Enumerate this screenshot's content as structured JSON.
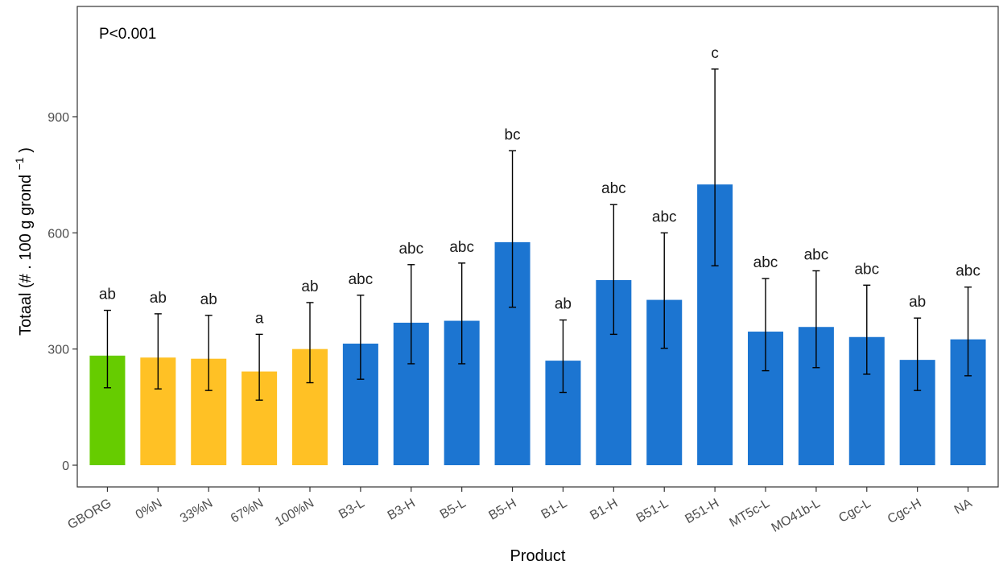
{
  "chart_data": {
    "type": "bar",
    "title": "",
    "xlabel": "Product",
    "ylabel": "Totaal (# . 100 g grond",
    "ylabel_superscript": "−1",
    "ylabel_close": ")",
    "annotation": "P<0.001",
    "ylim": [
      -50,
      1180
    ],
    "yticks": [
      0,
      300,
      600,
      900
    ],
    "grid": false,
    "legend": "none",
    "categories": [
      "GBORG",
      "0%N",
      "33%N",
      "67%N",
      "100%N",
      "B3-L",
      "B3-H",
      "B5-L",
      "B5-H",
      "B1-L",
      "B1-H",
      "B51-L",
      "B51-H",
      "MT5c-L",
      "MO41b-L",
      "Cgc-L",
      "Cgc-H",
      "NA"
    ],
    "values": [
      283,
      278,
      275,
      242,
      300,
      314,
      368,
      373,
      576,
      270,
      478,
      427,
      725,
      345,
      357,
      331,
      272,
      325
    ],
    "error_low": [
      200,
      197,
      193,
      168,
      213,
      222,
      262,
      262,
      408,
      188,
      338,
      302,
      515,
      244,
      252,
      235,
      193,
      231
    ],
    "error_high": [
      400,
      391,
      387,
      338,
      420,
      439,
      518,
      522,
      812,
      375,
      673,
      600,
      1023,
      482,
      502,
      465,
      380,
      460
    ],
    "significance": [
      "ab",
      "ab",
      "ab",
      "a",
      "ab",
      "abc",
      "abc",
      "abc",
      "bc",
      "ab",
      "abc",
      "abc",
      "c",
      "abc",
      "abc",
      "abc",
      "ab",
      "abc"
    ],
    "group": [
      "control",
      "fert",
      "fert",
      "fert",
      "fert",
      "product",
      "product",
      "product",
      "product",
      "product",
      "product",
      "product",
      "product",
      "product",
      "product",
      "product",
      "product",
      "product"
    ],
    "colors": {
      "control": "#66cc00",
      "fert": "#ffc125",
      "product": "#1c75d1",
      "error": "#000000",
      "panel_border": "#333333"
    }
  }
}
